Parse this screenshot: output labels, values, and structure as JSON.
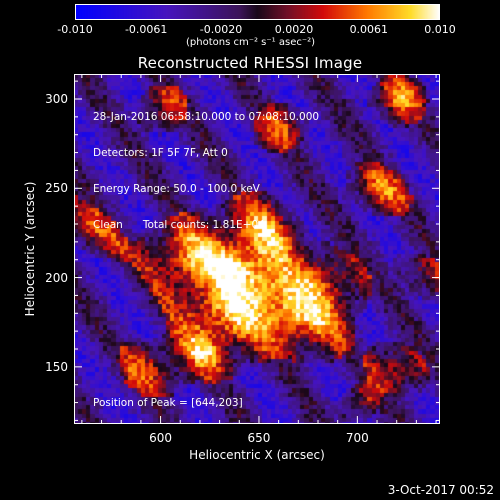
{
  "chart_data": {
    "type": "heatmap",
    "title": "Reconstructed RHESSI Image",
    "xlabel": "Heliocentric X (arcsec)",
    "ylabel": "Heliocentric Y (arcsec)",
    "xlim": [
      556,
      742
    ],
    "ylim": [
      118,
      314
    ],
    "x_ticks": [
      600,
      650,
      700
    ],
    "y_ticks": [
      150,
      200,
      250,
      300
    ],
    "colorbar": {
      "min": -0.01,
      "max": 0.01,
      "ticks": [
        "-0.010",
        "-0.0061",
        "-0.0020",
        "0.0020",
        "0.0061",
        "0.010"
      ],
      "label": "(photons cm⁻² s⁻¹ asec⁻²)"
    },
    "annotations": [
      "28-Jan-2016 06:58:10.000 to 07:08:10.000",
      "Detectors: 1F 5F 7F, Att 0",
      "Energy Range: 50.0 - 100.0 keV",
      "Clean      Total counts: 1.81E+04"
    ],
    "peak_label": "Position of Peak = [644,203]",
    "peak": {
      "x": 644,
      "y": 203
    },
    "blobs": [
      {
        "x": 644,
        "y": 204,
        "amp": 1.0,
        "sx": 11,
        "sy": 20
      },
      {
        "x": 630,
        "y": 180,
        "amp": 0.8,
        "sx": 10,
        "sy": 16
      },
      {
        "x": 670,
        "y": 178,
        "amp": 0.8,
        "sx": 10,
        "sy": 14
      },
      {
        "x": 610,
        "y": 210,
        "amp": 0.6,
        "sx": 10,
        "sy": 12
      },
      {
        "x": 652,
        "y": 228,
        "amp": 0.55,
        "sx": 10,
        "sy": 12
      },
      {
        "x": 686,
        "y": 200,
        "amp": 0.5,
        "sx": 9,
        "sy": 12
      },
      {
        "x": 622,
        "y": 160,
        "amp": 0.6,
        "sx": 8,
        "sy": 10
      },
      {
        "x": 595,
        "y": 150,
        "amp": 0.5,
        "sx": 8,
        "sy": 10
      },
      {
        "x": 720,
        "y": 150,
        "amp": 0.55,
        "sx": 7,
        "sy": 9
      },
      {
        "x": 710,
        "y": 250,
        "amp": 0.5,
        "sx": 7,
        "sy": 10
      },
      {
        "x": 720,
        "y": 300,
        "amp": 0.5,
        "sx": 8,
        "sy": 8
      },
      {
        "x": 560,
        "y": 230,
        "amp": 0.55,
        "sx": 6,
        "sy": 14
      },
      {
        "x": 660,
        "y": 285,
        "amp": 0.35,
        "sx": 9,
        "sy": 8
      },
      {
        "x": 600,
        "y": 295,
        "amp": 0.3,
        "sx": 9,
        "sy": 8
      },
      {
        "x": 735,
        "y": 200,
        "amp": 0.35,
        "sx": 6,
        "sy": 12
      },
      {
        "x": 700,
        "y": 130,
        "amp": 0.25,
        "sx": 8,
        "sy": 6
      }
    ]
  },
  "footer": {
    "date": "3-Oct-2017 00:52"
  }
}
